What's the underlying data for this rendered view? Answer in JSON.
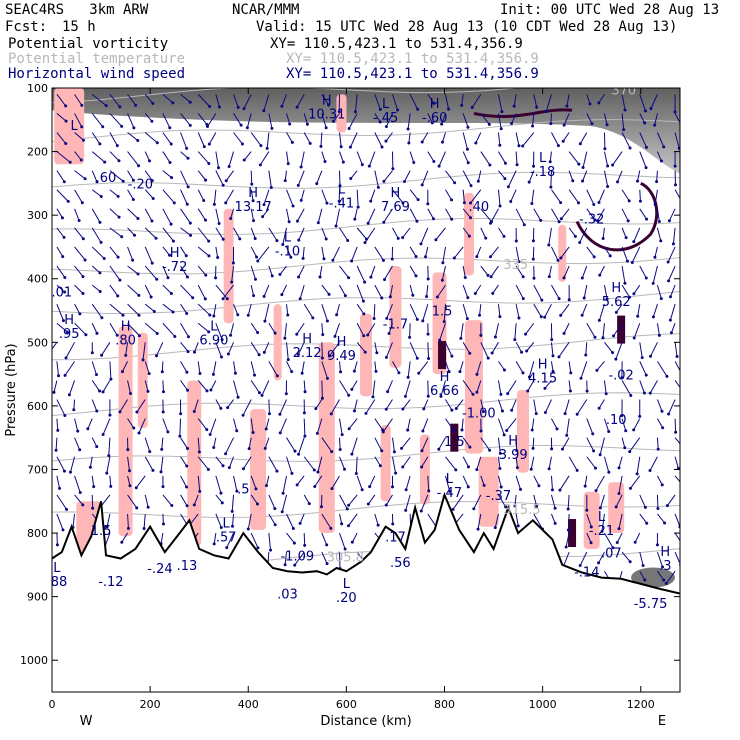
{
  "header": {
    "model": "SEAC4RS   3km ARW",
    "org": "NCAR/MMM",
    "init": "Init: 00 UTC Wed 28 Aug 13",
    "fcst_label": "Fcst:",
    "fcst_value": "15 h",
    "valid": "Valid: 15 UTC Wed 28 Aug 13 (10 CDT Wed 28 Aug 13)",
    "fields": [
      {
        "name": "Potential vorticity",
        "xy": "XY= 110.5,423.1 to 531.4,356.9",
        "color": "#000000"
      },
      {
        "name": "Potential temperature",
        "xy": "XY= 110.5,423.1 to 531.4,356.9",
        "color": "#b8b8b8"
      },
      {
        "name": "Horizontal wind speed",
        "xy": "XY= 110.5,423.1 to 531.4,356.9",
        "color": "#000080"
      }
    ]
  },
  "chart_data": {
    "type": "cross-section",
    "xlabel": "Distance (km)",
    "ylabel": "Pressure (hPa)",
    "xlim": [
      0,
      1280
    ],
    "ylim": [
      100,
      1050
    ],
    "x_ticks": [
      "0",
      "200",
      "400",
      "600",
      "800",
      "1000",
      "1200"
    ],
    "y_ticks": [
      "100",
      "200",
      "300",
      "400",
      "500",
      "600",
      "700",
      "800",
      "900",
      "1000"
    ],
    "endpoints": {
      "left": "W",
      "right": "E"
    },
    "terrain": [
      [
        0,
        840
      ],
      [
        20,
        830
      ],
      [
        40,
        790
      ],
      [
        60,
        835
      ],
      [
        80,
        805
      ],
      [
        100,
        750
      ],
      [
        110,
        835
      ],
      [
        140,
        840
      ],
      [
        170,
        825
      ],
      [
        200,
        790
      ],
      [
        230,
        830
      ],
      [
        260,
        800
      ],
      [
        280,
        780
      ],
      [
        300,
        825
      ],
      [
        330,
        835
      ],
      [
        360,
        840
      ],
      [
        390,
        800
      ],
      [
        420,
        830
      ],
      [
        450,
        855
      ],
      [
        480,
        860
      ],
      [
        510,
        862
      ],
      [
        540,
        860
      ],
      [
        560,
        865
      ],
      [
        580,
        855
      ],
      [
        600,
        860
      ],
      [
        630,
        845
      ],
      [
        650,
        830
      ],
      [
        680,
        790
      ],
      [
        700,
        800
      ],
      [
        720,
        825
      ],
      [
        740,
        760
      ],
      [
        760,
        815
      ],
      [
        780,
        795
      ],
      [
        800,
        740
      ],
      [
        830,
        795
      ],
      [
        860,
        830
      ],
      [
        880,
        800
      ],
      [
        900,
        825
      ],
      [
        930,
        760
      ],
      [
        950,
        800
      ],
      [
        980,
        780
      ],
      [
        1000,
        795
      ],
      [
        1020,
        810
      ],
      [
        1040,
        850
      ],
      [
        1080,
        862
      ],
      [
        1120,
        870
      ],
      [
        1160,
        872
      ],
      [
        1200,
        880
      ],
      [
        1240,
        888
      ],
      [
        1280,
        895
      ]
    ],
    "theta_isentropes": [
      {
        "label": "370",
        "p": 115
      },
      {
        "label": "",
        "p": 180
      },
      {
        "label": "",
        "p": 260
      },
      {
        "label": "",
        "p": 330
      },
      {
        "label": "335",
        "p": 390
      },
      {
        "label": "",
        "p": 450
      },
      {
        "label": "",
        "p": 520
      },
      {
        "label": "",
        "p": 610
      },
      {
        "label": "",
        "p": 690
      },
      {
        "label": "315.5",
        "p": 775
      },
      {
        "label": "305.8",
        "p": 850
      }
    ],
    "extrema": [
      {
        "type": "H",
        "value": "10.31",
        "x": 560,
        "p": 145
      },
      {
        "type": "L",
        "value": "-.45",
        "x": 680,
        "p": 150
      },
      {
        "type": "H",
        "value": "-.60",
        "x": 780,
        "p": 150
      },
      {
        "type": "L",
        "value": "",
        "x": 45,
        "p": 185
      },
      {
        "type": "",
        "value": ".60",
        "x": 110,
        "p": 245
      },
      {
        "type": "",
        "value": "-.20",
        "x": 180,
        "p": 255
      },
      {
        "type": "H",
        "value": "13.17",
        "x": 410,
        "p": 290
      },
      {
        "type": "L",
        "value": "-.41",
        "x": 590,
        "p": 285
      },
      {
        "type": "H",
        "value": "7.69",
        "x": 700,
        "p": 290
      },
      {
        "type": "",
        "value": ".40",
        "x": 870,
        "p": 290
      },
      {
        "type": "L",
        "value": "-.18",
        "x": 1000,
        "p": 235
      },
      {
        "type": "",
        "value": "-.32",
        "x": 1100,
        "p": 310
      },
      {
        "type": "L",
        "value": "-.10",
        "x": 480,
        "p": 360
      },
      {
        "type": "H",
        "value": "-.72",
        "x": 250,
        "p": 385
      },
      {
        "type": "H",
        "value": "5.62",
        "x": 1150,
        "p": 440
      },
      {
        "type": "",
        "value": ".01",
        "x": 20,
        "p": 425
      },
      {
        "type": "H",
        "value": ".95",
        "x": 35,
        "p": 490
      },
      {
        "type": "H",
        "value": ".80",
        "x": 150,
        "p": 500
      },
      {
        "type": "L",
        "value": "6.90",
        "x": 330,
        "p": 500
      },
      {
        "type": "H",
        "value": "2.12",
        "x": 520,
        "p": 520
      },
      {
        "type": "H",
        "value": "9.49",
        "x": 590,
        "p": 525
      },
      {
        "type": "",
        "value": "-1.7",
        "x": 700,
        "p": 475
      },
      {
        "type": "",
        "value": "1.5",
        "x": 795,
        "p": 455
      },
      {
        "type": "H",
        "value": "4.15",
        "x": 1000,
        "p": 560
      },
      {
        "type": "H",
        "value": "6.66",
        "x": 800,
        "p": 580
      },
      {
        "type": "",
        "value": "-1.00",
        "x": 870,
        "p": 615
      },
      {
        "type": "",
        "value": "-.02",
        "x": 1160,
        "p": 555
      },
      {
        "type": "",
        "value": ".10",
        "x": 1150,
        "p": 625
      },
      {
        "type": "H",
        "value": "3.99",
        "x": 940,
        "p": 680
      },
      {
        "type": "",
        "value": "1.5",
        "x": 820,
        "p": 660
      },
      {
        "type": "L",
        "value": "-.47",
        "x": 810,
        "p": 740
      },
      {
        "type": "",
        "value": "-.37",
        "x": 910,
        "p": 745
      },
      {
        "type": "",
        "value": "1.5",
        "x": 100,
        "p": 800
      },
      {
        "type": "",
        "value": ".5",
        "x": 390,
        "p": 735
      },
      {
        "type": "L",
        "value": ".57",
        "x": 355,
        "p": 810
      },
      {
        "type": "",
        "value": "-1.09",
        "x": 500,
        "p": 840
      },
      {
        "type": "",
        "value": ".17",
        "x": 700,
        "p": 810
      },
      {
        "type": "",
        "value": ".56",
        "x": 710,
        "p": 850
      },
      {
        "type": "",
        "value": "-.24",
        "x": 220,
        "p": 860
      },
      {
        "type": "",
        "value": ".13",
        "x": 275,
        "p": 855
      },
      {
        "type": "L",
        "value": ".88",
        "x": 10,
        "p": 880
      },
      {
        "type": "",
        "value": "-.12",
        "x": 120,
        "p": 880
      },
      {
        "type": "",
        "value": ".03",
        "x": 480,
        "p": 900
      },
      {
        "type": "L",
        "value": ".20",
        "x": 600,
        "p": 905
      },
      {
        "type": "L",
        "value": "-.21",
        "x": 1120,
        "p": 800
      },
      {
        "type": "",
        "value": ".07",
        "x": 1140,
        "p": 835
      },
      {
        "type": "",
        "value": "-.14",
        "x": 1090,
        "p": 865
      },
      {
        "type": "H",
        "value": ".3",
        "x": 1250,
        "p": 855
      },
      {
        "type": "",
        "value": "-5.75",
        "x": 1220,
        "p": 915
      }
    ],
    "colors": {
      "pv_contour": "#000000",
      "pv_high_contour": "#3a0030",
      "pv_fill": "#ffb6b6",
      "theta": "#b8b8b8",
      "wind": "#0a0a82",
      "label": "#000080",
      "gray_shade": "#555555"
    }
  }
}
